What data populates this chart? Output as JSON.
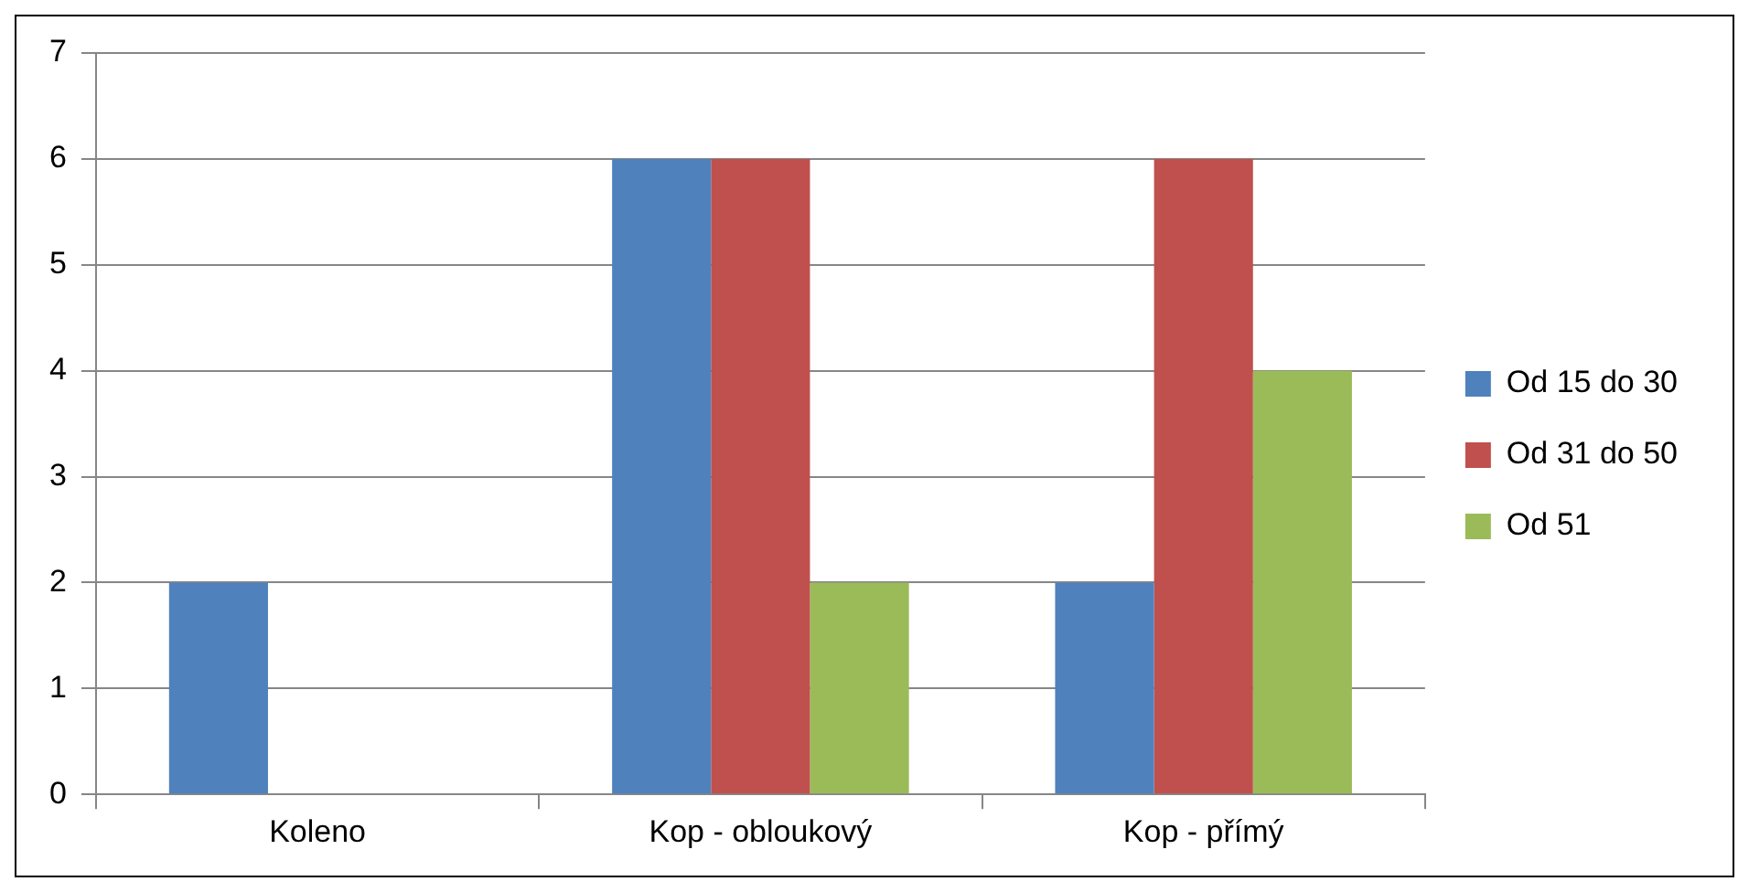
{
  "chart_data": {
    "type": "bar",
    "categories": [
      "Koleno",
      "Kop - obloukový",
      "Kop - přímý"
    ],
    "series": [
      {
        "name": "Od 15 do 30",
        "color": "#4f81bd",
        "values": [
          2,
          6,
          2
        ]
      },
      {
        "name": "Od 31 do 50",
        "color": "#c0504d",
        "values": [
          0,
          6,
          6
        ]
      },
      {
        "name": "Od 51",
        "color": "#9bbb59",
        "values": [
          0,
          2,
          4
        ]
      }
    ],
    "ylim": [
      0,
      7
    ],
    "yticks": [
      0,
      1,
      2,
      3,
      4,
      5,
      6,
      7
    ],
    "grid": "y",
    "legend": "right"
  }
}
